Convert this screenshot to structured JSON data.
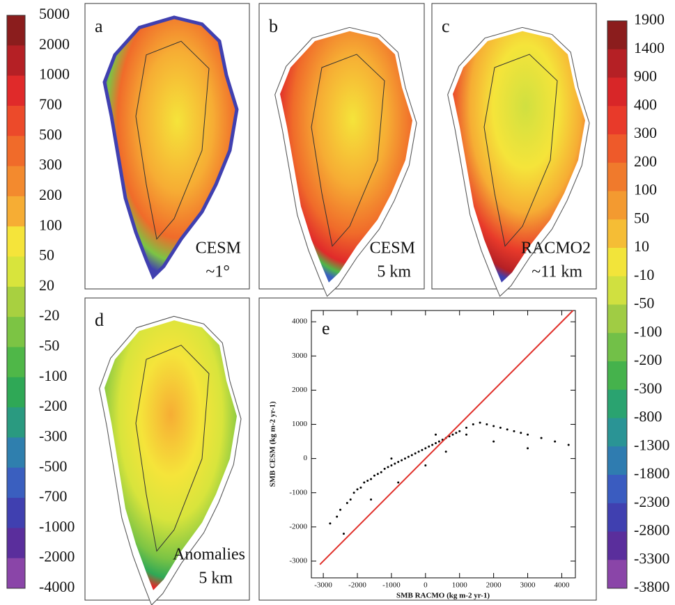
{
  "left_colorbar": {
    "labels": [
      5000,
      2000,
      1000,
      700,
      500,
      300,
      200,
      100,
      50,
      20,
      -20,
      -50,
      -100,
      -200,
      -300,
      -500,
      -700,
      -1000,
      -2000,
      -4000
    ],
    "colors": [
      "#8b1d1d",
      "#b52025",
      "#e02a2a",
      "#ec4a2a",
      "#f06b2a",
      "#f38a2e",
      "#f6ad34",
      "#f5e43a",
      "#d8e43c",
      "#a8d040",
      "#7cc444",
      "#4fb748",
      "#2fa856",
      "#2a9a80",
      "#2f7fae",
      "#3a5fbf",
      "#4040b0",
      "#5a2e9c",
      "#8a45a8"
    ]
  },
  "right_colorbar": {
    "labels": [
      1900,
      1400,
      900,
      400,
      300,
      200,
      100,
      50,
      10,
      -10,
      -50,
      -100,
      -200,
      -300,
      -800,
      -1300,
      -1800,
      -2300,
      -2800,
      -3300,
      -3800
    ],
    "colors": [
      "#8b1d1d",
      "#b52025",
      "#d82628",
      "#e83a2a",
      "#ee5a2a",
      "#f07a2c",
      "#f39a30",
      "#f5bd35",
      "#f2e43a",
      "#d0e040",
      "#a0cc44",
      "#72c048",
      "#45b24c",
      "#2aa370",
      "#2a9495",
      "#2f7cb0",
      "#3a5cc0",
      "#4040b0",
      "#5a2e9c",
      "#8a45a8"
    ]
  },
  "panels": [
    {
      "letter": "a",
      "caption": [
        "CESM",
        "~1°"
      ]
    },
    {
      "letter": "b",
      "caption": [
        "CESM",
        "5 km"
      ]
    },
    {
      "letter": "c",
      "caption": [
        "RACMO2",
        "~11 km"
      ]
    },
    {
      "letter": "d",
      "caption": [
        "Anomalies",
        "5 km"
      ]
    }
  ],
  "chart_data": {
    "type": "scatter",
    "panel_label": "e",
    "xlabel": "SMB RACMO (kg m-2 yr-1)",
    "ylabel": "SMB CESM (kg m-2 yr-1)",
    "xlim": [
      -3350,
      4400
    ],
    "ylim": [
      -3490,
      4330
    ],
    "xticks": [
      -3000,
      -2000,
      -1000,
      0,
      1000,
      2000,
      3000,
      4000
    ],
    "yticks": [
      -3000,
      -2000,
      -1000,
      0,
      1000,
      2000,
      3000,
      4000
    ],
    "series": [
      {
        "type": "scatter",
        "color": "#000000",
        "x": [
          -2800,
          -2600,
          -2500,
          -2300,
          -2200,
          -2100,
          -2000,
          -1900,
          -1800,
          -1700,
          -1600,
          -1500,
          -1400,
          -1300,
          -1200,
          -1100,
          -1000,
          -900,
          -800,
          -700,
          -600,
          -500,
          -400,
          -300,
          -200,
          -100,
          0,
          100,
          200,
          300,
          400,
          500,
          600,
          700,
          800,
          900,
          1000,
          1200,
          1400,
          1600,
          1800,
          2000,
          2200,
          2400,
          2600,
          2800,
          3000,
          3400,
          3800,
          4200,
          -2400,
          -1600,
          -800,
          0,
          600,
          1200,
          2000,
          3000,
          -1000,
          300
        ],
        "values": [
          -1900,
          -1700,
          -1500,
          -1300,
          -1200,
          -1000,
          -900,
          -850,
          -700,
          -650,
          -600,
          -500,
          -450,
          -400,
          -300,
          -250,
          -200,
          -150,
          -100,
          -50,
          0,
          50,
          100,
          150,
          200,
          250,
          300,
          350,
          400,
          450,
          500,
          550,
          600,
          650,
          700,
          750,
          800,
          900,
          1000,
          1050,
          1000,
          950,
          900,
          850,
          800,
          750,
          700,
          600,
          500,
          400,
          -2200,
          -1200,
          -700,
          -200,
          200,
          700,
          500,
          300,
          0,
          700
        ]
      },
      {
        "type": "line",
        "color": "#e0302a",
        "x": [
          -3100,
          4330
        ],
        "values": [
          -3100,
          4330
        ]
      }
    ]
  }
}
